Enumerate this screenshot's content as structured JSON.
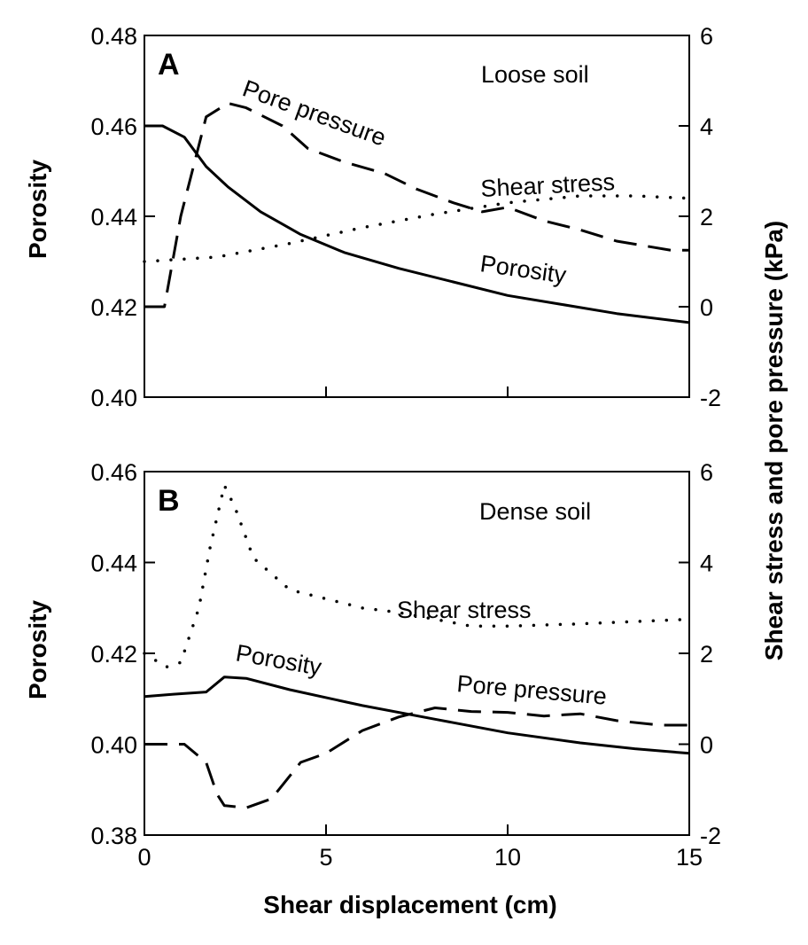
{
  "chart_data": [
    {
      "type": "line",
      "panel": "A",
      "annotation": "Loose soil",
      "xlabel": "",
      "ylabel_left": "Porosity",
      "ylabel_right": "Shear stress and pore pressure (kPa)",
      "xlim": [
        0,
        15
      ],
      "ylim_left": [
        0.4,
        0.48
      ],
      "ylim_right": [
        -2,
        6
      ],
      "x_ticks": [
        "0",
        "5",
        "10",
        "15"
      ],
      "x_ticks_shown": false,
      "y_left_ticks": [
        "0.40",
        "0.42",
        "0.44",
        "0.46",
        "0.48"
      ],
      "y_right_ticks": [
        "-2",
        "0",
        "2",
        "4",
        "6"
      ],
      "series": [
        {
          "name": "Porosity",
          "axis": "left",
          "style": "solid",
          "label_rotation": 8,
          "points": [
            [
              0,
              0.46
            ],
            [
              0.5,
              0.46
            ],
            [
              1.1,
              0.4575
            ],
            [
              1.7,
              0.451
            ],
            [
              2.3,
              0.4465
            ],
            [
              3.2,
              0.441
            ],
            [
              4.3,
              0.436
            ],
            [
              5.5,
              0.432
            ],
            [
              7,
              0.4285
            ],
            [
              8.5,
              0.4255
            ],
            [
              10,
              0.4225
            ],
            [
              11.5,
              0.4205
            ],
            [
              13,
              0.4185
            ],
            [
              15,
              0.4165
            ]
          ]
        },
        {
          "name": "Pore pressure",
          "axis": "right",
          "style": "dashed",
          "label_rotation": 20,
          "points": [
            [
              0,
              0
            ],
            [
              0.55,
              0
            ],
            [
              1.0,
              2.0
            ],
            [
              1.7,
              4.2
            ],
            [
              2.3,
              4.5
            ],
            [
              2.8,
              4.4
            ],
            [
              3.8,
              4.0
            ],
            [
              4.5,
              3.5
            ],
            [
              5.5,
              3.2
            ],
            [
              6.6,
              2.95
            ],
            [
              7.5,
              2.6
            ],
            [
              8.5,
              2.3
            ],
            [
              9.3,
              2.1
            ],
            [
              10,
              2.2
            ],
            [
              11,
              1.9
            ],
            [
              12,
              1.7
            ],
            [
              13,
              1.45
            ],
            [
              14.5,
              1.25
            ],
            [
              15,
              1.25
            ]
          ]
        },
        {
          "name": "Shear stress",
          "axis": "right",
          "style": "dotted",
          "label_rotation": -3,
          "points": [
            [
              0,
              1.0
            ],
            [
              2,
              1.1
            ],
            [
              4,
              1.4
            ],
            [
              6,
              1.75
            ],
            [
              8,
              2.05
            ],
            [
              10,
              2.3
            ],
            [
              12,
              2.45
            ],
            [
              13.5,
              2.45
            ],
            [
              15,
              2.4
            ]
          ]
        }
      ]
    },
    {
      "type": "line",
      "panel": "B",
      "annotation": "Dense soil",
      "xlabel": "Shear displacement (cm)",
      "ylabel_left": "Porosity",
      "ylabel_right": "",
      "xlim": [
        0,
        15
      ],
      "ylim_left": [
        0.38,
        0.46
      ],
      "ylim_right": [
        -2,
        6
      ],
      "x_ticks": [
        "0",
        "5",
        "10",
        "15"
      ],
      "x_ticks_shown": true,
      "y_left_ticks": [
        "0.38",
        "0.40",
        "0.42",
        "0.44",
        "0.46"
      ],
      "y_right_ticks": [
        "-2",
        "0",
        "2",
        "4",
        "6"
      ],
      "series": [
        {
          "name": "Porosity",
          "axis": "left",
          "style": "solid",
          "label_rotation": 10,
          "points": [
            [
              0,
              0.4105
            ],
            [
              0.8,
              0.411
            ],
            [
              1.7,
              0.4115
            ],
            [
              2.2,
              0.4148
            ],
            [
              2.8,
              0.4145
            ],
            [
              4,
              0.412
            ],
            [
              6,
              0.4085
            ],
            [
              8,
              0.4055
            ],
            [
              10,
              0.4025
            ],
            [
              12,
              0.4003
            ],
            [
              13.5,
              0.399
            ],
            [
              15,
              0.398
            ]
          ]
        },
        {
          "name": "Pore pressure",
          "axis": "right",
          "style": "dashed",
          "label_rotation": 5,
          "points": [
            [
              0,
              0
            ],
            [
              1.1,
              0
            ],
            [
              1.7,
              -0.4
            ],
            [
              2.0,
              -1.1
            ],
            [
              2.2,
              -1.35
            ],
            [
              2.8,
              -1.4
            ],
            [
              3.5,
              -1.2
            ],
            [
              4.3,
              -0.4
            ],
            [
              5.0,
              -0.2
            ],
            [
              6.0,
              0.3
            ],
            [
              7.0,
              0.6
            ],
            [
              8.0,
              0.8
            ],
            [
              9.0,
              0.72
            ],
            [
              10,
              0.7
            ],
            [
              11,
              0.62
            ],
            [
              12,
              0.67
            ],
            [
              13,
              0.52
            ],
            [
              14.2,
              0.42
            ],
            [
              15,
              0.42
            ]
          ]
        },
        {
          "name": "Shear stress",
          "axis": "right",
          "style": "dotted",
          "label_rotation": 0,
          "points": [
            [
              0,
              2.0
            ],
            [
              0.6,
              1.7
            ],
            [
              1.0,
              1.8
            ],
            [
              1.5,
              3.0
            ],
            [
              1.8,
              4.3
            ],
            [
              2.2,
              5.7
            ],
            [
              2.5,
              5.2
            ],
            [
              3.0,
              4.1
            ],
            [
              4.0,
              3.4
            ],
            [
              5.0,
              3.2
            ],
            [
              6.0,
              3.0
            ],
            [
              7.0,
              2.9
            ],
            [
              8.0,
              2.75
            ],
            [
              9.0,
              2.6
            ],
            [
              10,
              2.6
            ],
            [
              12,
              2.65
            ],
            [
              15,
              2.75
            ]
          ]
        }
      ]
    }
  ]
}
